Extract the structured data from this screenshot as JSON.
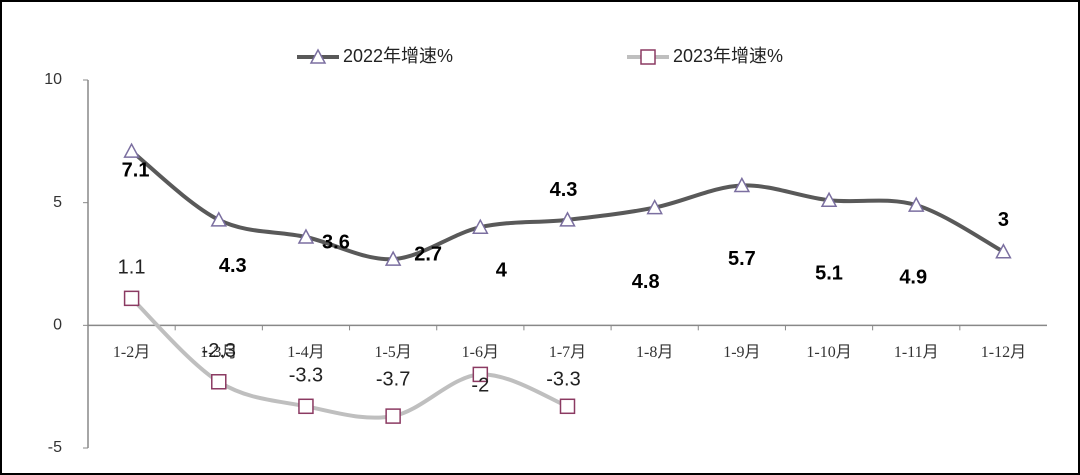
{
  "chart_data": {
    "type": "line",
    "categories": [
      "1-2月",
      "1-3月",
      "1-4月",
      "1-5月",
      "1-6月",
      "1-7月",
      "1-8月",
      "1-9月",
      "1-10月",
      "1-11月",
      "1-12月"
    ],
    "series": [
      {
        "name": "2022年增速%",
        "color": "#595959",
        "marker_color": "#7b6fa0",
        "marker": "triangle",
        "values": [
          7.1,
          4.3,
          3.6,
          2.7,
          4.0,
          4.3,
          4.8,
          5.7,
          5.1,
          4.9,
          3.0
        ]
      },
      {
        "name": "2023年增速%",
        "color": "#bfbfbf",
        "marker_color": "#8b3a62",
        "marker": "square",
        "values": [
          1.1,
          -2.3,
          -3.3,
          -3.7,
          -2.0,
          -3.3,
          null,
          null,
          null,
          null,
          null
        ]
      }
    ],
    "ylim": [
      -5,
      10
    ],
    "yticks": [
      -5,
      0,
      5,
      10
    ],
    "legend": "top"
  }
}
